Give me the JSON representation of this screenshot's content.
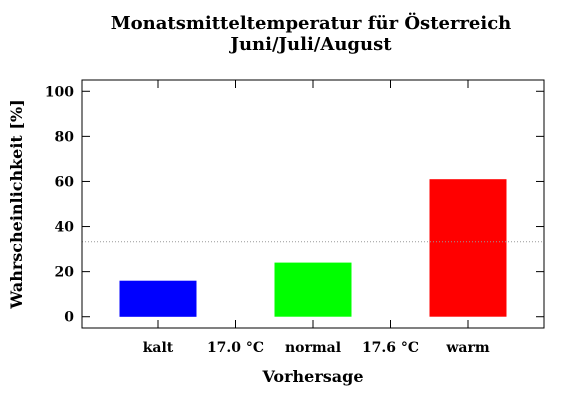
{
  "chart_data": {
    "type": "bar",
    "title": "Monatsmitteltemperatur für Österreich",
    "subtitle": "Juni/Juli/August",
    "xlabel": "Vorhersage",
    "ylabel": "Wahrscheinlichkeit [%]",
    "categories": [
      "kalt",
      "normal",
      "warm"
    ],
    "values": [
      16,
      24,
      61
    ],
    "colors": [
      "#0000ff",
      "#00ff00",
      "#ff0000"
    ],
    "thresholds": [
      "17.0 °C",
      "17.6 °C"
    ],
    "ylim": [
      -5,
      105
    ],
    "yticks": [
      0,
      20,
      40,
      60,
      80,
      100
    ],
    "reference_line": 33.3,
    "grid": false
  }
}
